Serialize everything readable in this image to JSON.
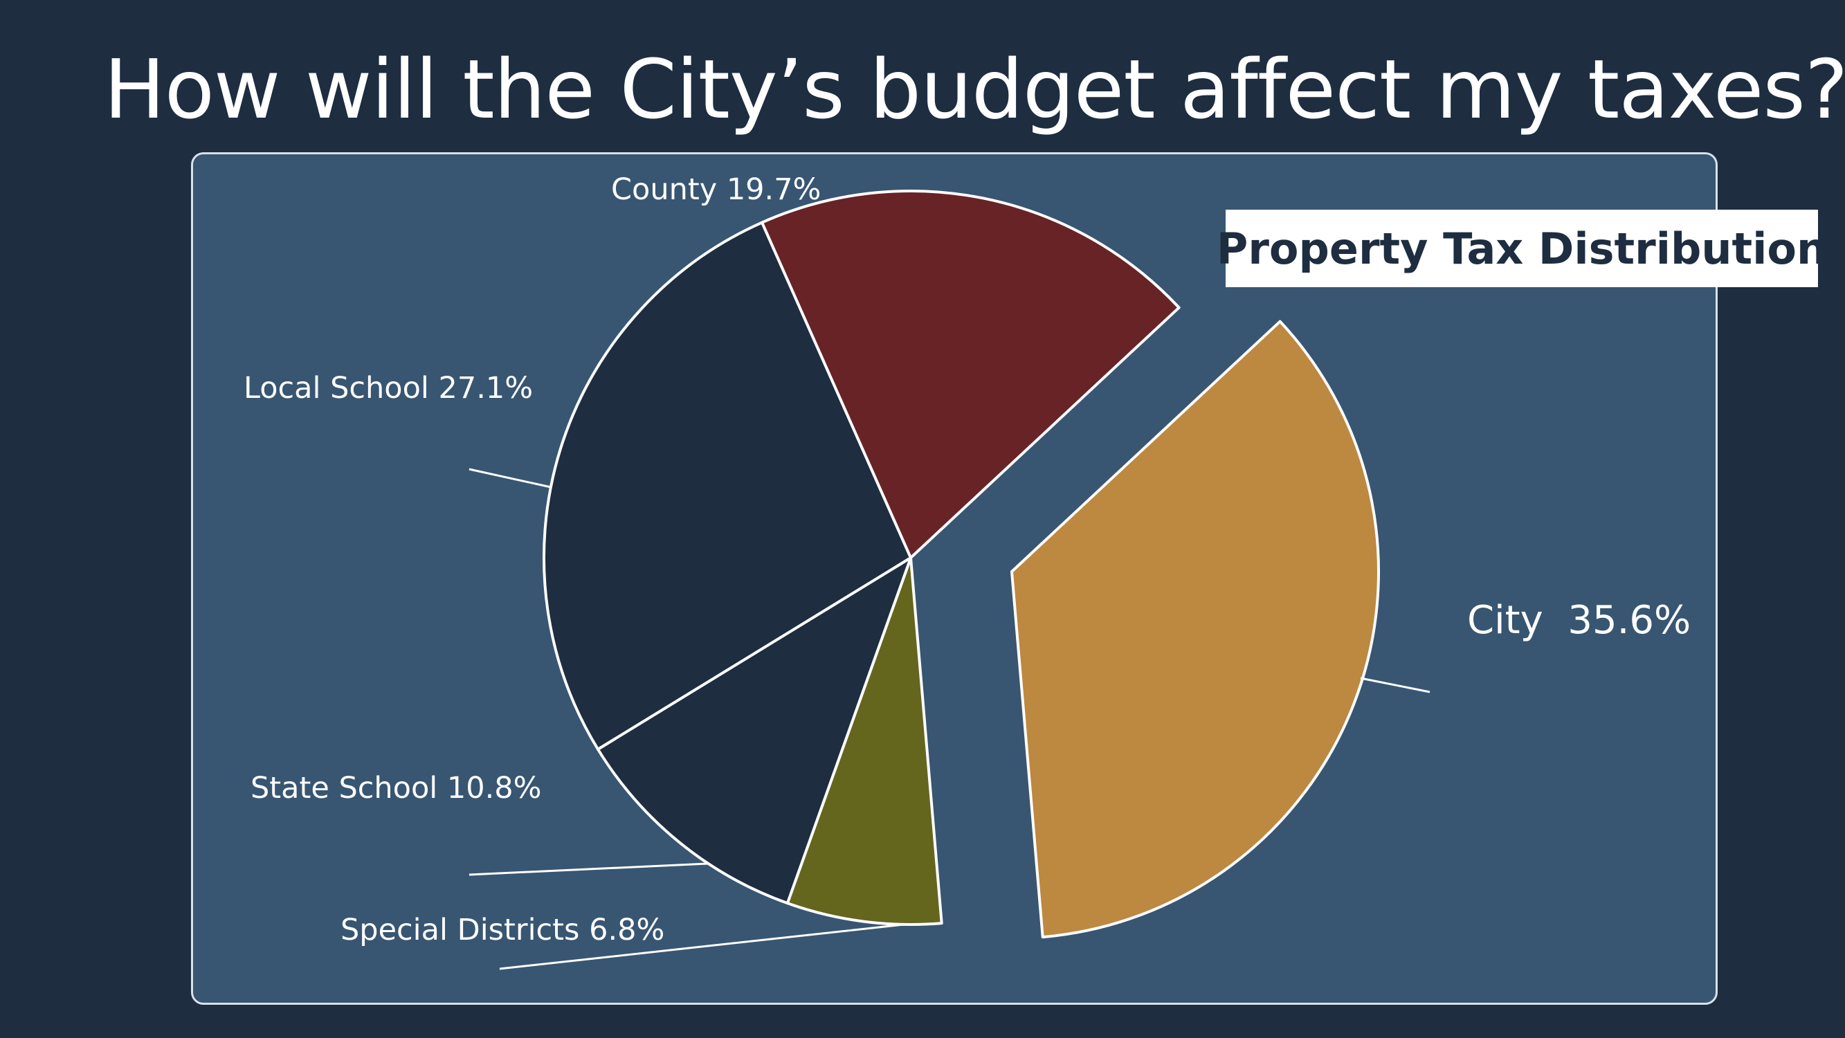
{
  "slide": {
    "title": "How will the City’s budget affect my taxes?"
  },
  "chart_data": {
    "type": "pie",
    "title": "Property Tax Distribution",
    "labels": [
      "City",
      "Special Districts",
      "State School",
      "Local School",
      "County"
    ],
    "values": [
      35.6,
      6.8,
      10.8,
      27.1,
      19.7
    ],
    "label_texts": [
      "City  35.6%",
      "Special Districts 6.8%",
      "State School 10.8%",
      "Local School 27.1%",
      "County 19.7%"
    ],
    "exploded": [
      "City",
      "Special Districts"
    ],
    "colors": [
      "#bd8840",
      "#65661d",
      "#1e2d40",
      "#1e2d40",
      "#682326"
    ],
    "start_angle_deg": 43
  }
}
